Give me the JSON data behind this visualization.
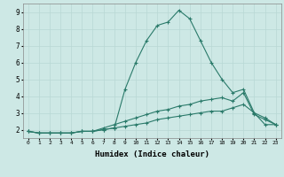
{
  "title": "",
  "xlabel": "Humidex (Indice chaleur)",
  "xlim": [
    -0.5,
    23.5
  ],
  "ylim": [
    1.5,
    9.5
  ],
  "yticks": [
    2,
    3,
    4,
    5,
    6,
    7,
    8,
    9
  ],
  "xticks": [
    0,
    1,
    2,
    3,
    4,
    5,
    6,
    7,
    8,
    9,
    10,
    11,
    12,
    13,
    14,
    15,
    16,
    17,
    18,
    19,
    20,
    21,
    22,
    23
  ],
  "background_color": "#cde8e5",
  "grid_color": "#b8d8d4",
  "line_color": "#2a7a6a",
  "lines": [
    {
      "x": [
        0,
        1,
        2,
        3,
        4,
        5,
        6,
        7,
        8,
        9,
        10,
        11,
        12,
        13,
        14,
        15,
        16,
        17,
        18,
        19,
        20,
        21,
        22,
        23
      ],
      "y": [
        1.9,
        1.8,
        1.8,
        1.8,
        1.8,
        1.9,
        1.9,
        2.0,
        2.1,
        4.4,
        6.0,
        7.3,
        8.2,
        8.4,
        9.1,
        8.6,
        7.3,
        6.0,
        5.0,
        4.2,
        4.4,
        3.0,
        2.7,
        2.3
      ]
    },
    {
      "x": [
        0,
        1,
        2,
        3,
        4,
        5,
        6,
        7,
        8,
        9,
        10,
        11,
        12,
        13,
        14,
        15,
        16,
        17,
        18,
        19,
        20,
        21,
        22,
        23
      ],
      "y": [
        1.9,
        1.8,
        1.8,
        1.8,
        1.8,
        1.9,
        1.9,
        2.1,
        2.3,
        2.5,
        2.7,
        2.9,
        3.1,
        3.2,
        3.4,
        3.5,
        3.7,
        3.8,
        3.9,
        3.7,
        4.2,
        2.9,
        2.6,
        2.3
      ]
    },
    {
      "x": [
        0,
        1,
        2,
        3,
        4,
        5,
        6,
        7,
        8,
        9,
        10,
        11,
        12,
        13,
        14,
        15,
        16,
        17,
        18,
        19,
        20,
        21,
        22,
        23
      ],
      "y": [
        1.9,
        1.8,
        1.8,
        1.8,
        1.8,
        1.9,
        1.9,
        2.0,
        2.1,
        2.2,
        2.3,
        2.4,
        2.6,
        2.7,
        2.8,
        2.9,
        3.0,
        3.1,
        3.1,
        3.3,
        3.5,
        3.0,
        2.3,
        2.3
      ]
    }
  ]
}
